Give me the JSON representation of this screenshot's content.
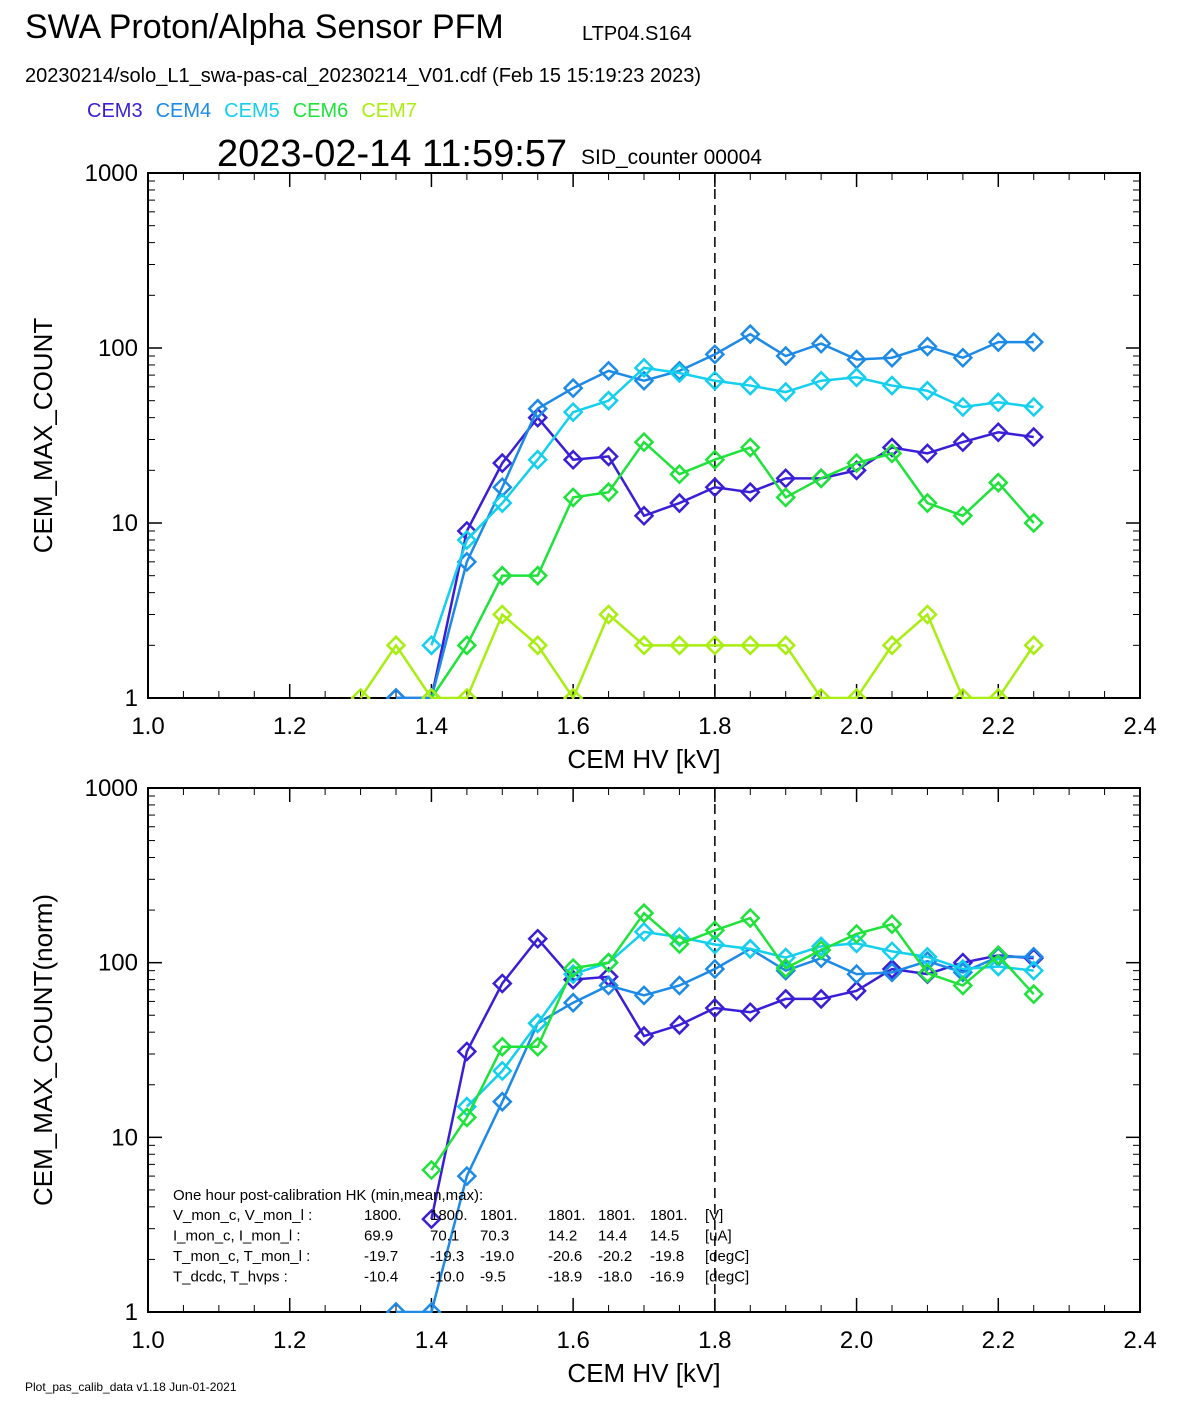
{
  "header": {
    "title": "SWA Proton/Alpha Sensor PFM",
    "subtitle": "LTP04.S164",
    "filename": "20230214/solo_L1_swa-pas-cal_20230214_V01.cdf  (Feb 15 15:19:23 2023)",
    "timestamp": "2023-02-14 11:59:57",
    "sid": "SID_counter 00004"
  },
  "legend": [
    {
      "label": "CEM3",
      "color": "#3a1fd6"
    },
    {
      "label": "CEM4",
      "color": "#1c8ae6"
    },
    {
      "label": "CEM5",
      "color": "#14cfee"
    },
    {
      "label": "CEM6",
      "color": "#1fe33a"
    },
    {
      "label": "CEM7",
      "color": "#a8ee10"
    }
  ],
  "footer": "Plot_pas_calib_data v1.18 Jun-01-2021",
  "hk": {
    "title": "One hour post-calibration HK (min,mean,max):",
    "rows": [
      {
        "label": "V_mon_c, V_mon_l :",
        "c": [
          "1800.",
          "1800.",
          "1801."
        ],
        "l": [
          "1801.",
          "1801.",
          "1801."
        ],
        "unit": "[V]"
      },
      {
        "label": "I_mon_c,  I_mon_l :",
        "c": [
          "69.9",
          "70.1",
          "70.3"
        ],
        "l": [
          "14.2",
          "14.4",
          "14.5"
        ],
        "unit": "[uA]"
      },
      {
        "label": "T_mon_c, T_mon_l :",
        "c": [
          "-19.7",
          "-19.3",
          "-19.0"
        ],
        "l": [
          "-20.6",
          "-20.2",
          "-19.8"
        ],
        "unit": "[degC]"
      },
      {
        "label": "T_dcdc,    T_hvps :",
        "c": [
          "-10.4",
          "-10.0",
          "-9.5"
        ],
        "l": [
          "-18.9",
          "-18.0",
          "-16.9"
        ],
        "unit": "[degC]"
      }
    ]
  },
  "chart_data": [
    {
      "type": "line",
      "xlabel": "CEM HV [kV]",
      "ylabel": "CEM_MAX_COUNT",
      "xlim": [
        1.0,
        2.4
      ],
      "ylim": [
        1,
        1000
      ],
      "yscale": "log",
      "xticks": [
        "1.0",
        "1.2",
        "1.4",
        "1.6",
        "1.8",
        "2.0",
        "2.2",
        "2.4"
      ],
      "yticks": [
        "1",
        "10",
        "100",
        "1000"
      ],
      "vline": 1.8,
      "marker": "diamond",
      "x": [
        1.3,
        1.35,
        1.4,
        1.45,
        1.5,
        1.55,
        1.6,
        1.65,
        1.7,
        1.75,
        1.8,
        1.85,
        1.9,
        1.95,
        2.0,
        2.05,
        2.1,
        2.15,
        2.2,
        2.25
      ],
      "series": [
        {
          "name": "CEM3",
          "values": [
            null,
            1,
            1,
            9,
            22,
            40,
            23,
            24,
            11,
            13,
            16,
            15,
            18,
            18,
            20,
            27,
            25,
            29,
            33,
            31
          ]
        },
        {
          "name": "CEM4",
          "values": [
            null,
            1,
            1,
            6,
            16,
            45,
            59,
            74,
            65,
            74,
            92,
            120,
            90,
            106,
            86,
            88,
            102,
            88,
            108,
            108
          ]
        },
        {
          "name": "CEM5",
          "values": [
            null,
            null,
            2,
            8,
            13,
            23,
            43,
            50,
            77,
            72,
            65,
            61,
            56,
            65,
            68,
            61,
            57,
            46,
            49,
            46
          ]
        },
        {
          "name": "CEM6",
          "values": [
            null,
            null,
            1,
            2,
            5,
            5,
            14,
            15,
            29,
            19,
            23,
            27,
            14,
            18,
            22,
            25,
            13,
            11,
            17,
            10
          ]
        },
        {
          "name": "CEM7",
          "values": [
            1,
            2,
            1,
            1,
            3,
            2,
            1,
            3,
            2,
            2,
            2,
            2,
            2,
            1,
            1,
            2,
            3,
            1,
            1,
            2
          ]
        }
      ]
    },
    {
      "type": "line",
      "xlabel": "CEM HV [kV]",
      "ylabel": "CEM_MAX_COUNT(norm)",
      "xlim": [
        1.0,
        2.4
      ],
      "ylim": [
        1,
        1000
      ],
      "yscale": "log",
      "xticks": [
        "1.0",
        "1.2",
        "1.4",
        "1.6",
        "1.8",
        "2.0",
        "2.2",
        "2.4"
      ],
      "yticks": [
        "1",
        "10",
        "100",
        "1000"
      ],
      "vline": 1.8,
      "marker": "diamond",
      "x": [
        1.35,
        1.4,
        1.45,
        1.5,
        1.55,
        1.6,
        1.65,
        1.7,
        1.75,
        1.8,
        1.85,
        1.9,
        1.95,
        2.0,
        2.05,
        2.1,
        2.15,
        2.2,
        2.25
      ],
      "series": [
        {
          "name": "CEM3",
          "values": [
            null,
            3.4,
            31,
            76,
            137,
            80,
            83,
            38,
            44,
            55,
            52,
            62,
            62,
            69,
            92,
            86,
            100,
            110,
            106
          ]
        },
        {
          "name": "CEM4",
          "values": [
            1,
            1,
            6,
            16,
            45,
            59,
            74,
            65,
            74,
            92,
            120,
            90,
            106,
            86,
            88,
            102,
            88,
            108,
            108
          ]
        },
        {
          "name": "CEM5",
          "values": [
            null,
            null,
            15,
            24,
            45,
            86,
            100,
            150,
            140,
            127,
            120,
            107,
            124,
            129,
            116,
            108,
            92,
            95,
            90
          ]
        },
        {
          "name": "CEM6",
          "values": [
            null,
            6.5,
            13,
            33,
            33,
            93,
            100,
            192,
            128,
            153,
            180,
            93,
            118,
            146,
            166,
            87,
            74,
            110,
            66
          ]
        }
      ]
    }
  ]
}
